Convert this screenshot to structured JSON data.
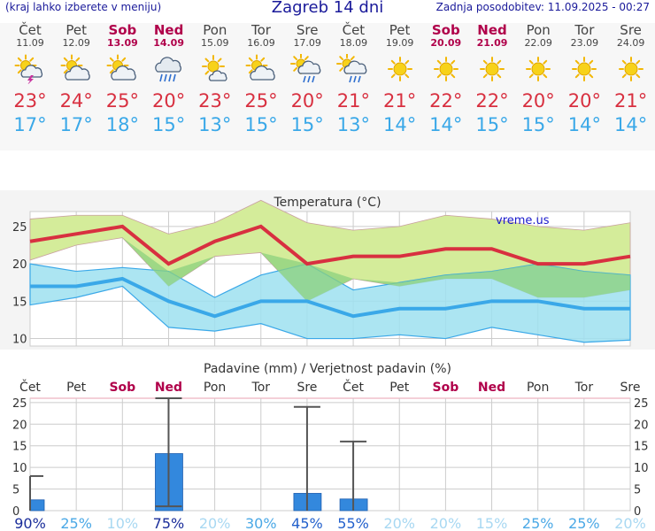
{
  "header": {
    "menu_hint": "(kraj lahko izberete v meniju)",
    "title": "Zagreb 14 dni",
    "updated": "Zadnja posodobitev: 11.09.2025 - 00:27"
  },
  "days": [
    {
      "name": "Čet",
      "date": "11.09",
      "weekend": false,
      "icon": "storm-sun-icon",
      "max": "23°",
      "min": "17°"
    },
    {
      "name": "Pet",
      "date": "12.09",
      "weekend": false,
      "icon": "partly-cloudy-icon",
      "max": "24°",
      "min": "17°"
    },
    {
      "name": "Sob",
      "date": "13.09",
      "weekend": true,
      "icon": "partly-cloudy-icon",
      "max": "25°",
      "min": "18°"
    },
    {
      "name": "Ned",
      "date": "14.09",
      "weekend": true,
      "icon": "rain-cloud-icon",
      "max": "20°",
      "min": "15°"
    },
    {
      "name": "Pon",
      "date": "15.09",
      "weekend": false,
      "icon": "sun-cloud-icon",
      "max": "23°",
      "min": "13°"
    },
    {
      "name": "Tor",
      "date": "16.09",
      "weekend": false,
      "icon": "partly-cloudy-icon",
      "max": "25°",
      "min": "15°"
    },
    {
      "name": "Sre",
      "date": "17.09",
      "weekend": false,
      "icon": "sun-rain-icon",
      "max": "20°",
      "min": "15°"
    },
    {
      "name": "Čet",
      "date": "18.09",
      "weekend": false,
      "icon": "sun-rain-icon",
      "max": "21°",
      "min": "13°"
    },
    {
      "name": "Pet",
      "date": "19.09",
      "weekend": false,
      "icon": "sun-icon",
      "max": "21°",
      "min": "14°"
    },
    {
      "name": "Sob",
      "date": "20.09",
      "weekend": true,
      "icon": "sun-icon",
      "max": "22°",
      "min": "14°"
    },
    {
      "name": "Ned",
      "date": "21.09",
      "weekend": true,
      "icon": "sun-icon",
      "max": "22°",
      "min": "15°"
    },
    {
      "name": "Pon",
      "date": "22.09",
      "weekend": false,
      "icon": "sun-icon",
      "max": "20°",
      "min": "15°"
    },
    {
      "name": "Tor",
      "date": "23.09",
      "weekend": false,
      "icon": "sun-icon",
      "max": "20°",
      "min": "14°"
    },
    {
      "name": "Sre",
      "date": "24.09",
      "weekend": false,
      "icon": "sun-icon",
      "max": "21°",
      "min": "14°"
    }
  ],
  "colors": {
    "max": "#d83040",
    "min": "#3aa8e8",
    "weekend": "#b0004a",
    "max_band": "#d4ec9a",
    "min_band": "#9ee0f0",
    "overlap": "#8cd17e",
    "bar": "#3388dd"
  },
  "chart_data": [
    {
      "type": "line",
      "title": "Temperatura (°C)",
      "watermark": "vreme.us",
      "categories": [
        "11.09",
        "12.09",
        "13.09",
        "14.09",
        "15.09",
        "16.09",
        "17.09",
        "18.09",
        "19.09",
        "20.09",
        "21.09",
        "22.09",
        "23.09",
        "24.09"
      ],
      "yticks": [
        10,
        15,
        20,
        25
      ],
      "ylim": [
        9,
        27
      ],
      "series": [
        {
          "name": "max",
          "values": [
            23,
            24,
            25,
            20,
            23,
            25,
            20,
            21,
            21,
            22,
            22,
            20,
            20,
            21
          ]
        },
        {
          "name": "min",
          "values": [
            17,
            17,
            18,
            15,
            13,
            15,
            15,
            13,
            14,
            14,
            15,
            15,
            14,
            14
          ]
        }
      ],
      "max_range": {
        "low": [
          20.5,
          22.5,
          23.5,
          17,
          21,
          21.5,
          15,
          18,
          17,
          18,
          18,
          15.5,
          15.5,
          16.5
        ],
        "high": [
          26,
          26.5,
          26.5,
          24,
          25.5,
          28.5,
          25.5,
          24.5,
          25,
          26.5,
          26,
          25,
          24.5,
          25.5
        ]
      },
      "min_range": {
        "low": [
          14.5,
          15.5,
          17,
          11.5,
          11,
          12,
          10,
          10,
          10.5,
          10,
          11.5,
          10.5,
          9.5,
          9.8
        ],
        "high": [
          20,
          19,
          19.5,
          19,
          15.5,
          18.5,
          20,
          16.5,
          17.5,
          18.5,
          19,
          20,
          19,
          18.5
        ]
      },
      "grid": true
    },
    {
      "type": "bar",
      "title": "Padavine (mm) / Verjetnost padavin (%)",
      "day_labels": [
        "Čet",
        "Pet",
        "Sob",
        "Ned",
        "Pon",
        "Tor",
        "Sre",
        "Čet",
        "Pet",
        "Sob",
        "Ned",
        "Pon",
        "Tor",
        "Sre"
      ],
      "categories": [
        "11.09",
        "12.09",
        "13.09",
        "14.09",
        "15.09",
        "16.09",
        "17.09",
        "18.09",
        "19.09",
        "20.09",
        "21.09",
        "22.09",
        "23.09",
        "24.09"
      ],
      "yticks": [
        0,
        5,
        10,
        15,
        20,
        25
      ],
      "ylim": [
        0,
        26
      ],
      "precip_mm": [
        2.5,
        0,
        0,
        13.2,
        0,
        0,
        4,
        2.7,
        0,
        0,
        0,
        0,
        0,
        0
      ],
      "precip_range_max": [
        8,
        0,
        0,
        26,
        0,
        0,
        24,
        16,
        0,
        0,
        0,
        0,
        0,
        0
      ],
      "precip_range_min": [
        0,
        0,
        0,
        1,
        0,
        0,
        0,
        0,
        0,
        0,
        0,
        0,
        0,
        0
      ],
      "probability": [
        "90%",
        "25%",
        "10%",
        "75%",
        "20%",
        "30%",
        "45%",
        "55%",
        "20%",
        "20%",
        "15%",
        "25%",
        "25%",
        "20%"
      ],
      "probability_colors": [
        "#1a2d9a",
        "#4aa8e6",
        "#a8d8f2",
        "#1a2d9a",
        "#a8d8f2",
        "#4aa8e6",
        "#2260cc",
        "#2260cc",
        "#a8d8f2",
        "#a8d8f2",
        "#a8d8f2",
        "#4aa8e6",
        "#4aa8e6",
        "#a8d8f2"
      ],
      "grid": true
    }
  ]
}
